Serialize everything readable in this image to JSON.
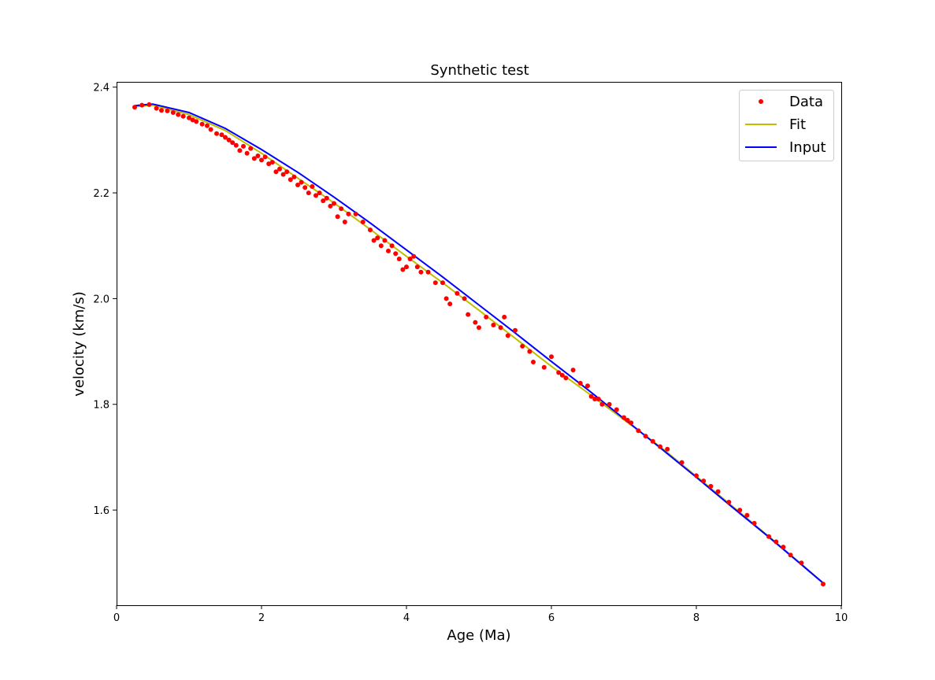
{
  "chart_data": {
    "type": "line",
    "title": "Synthetic test",
    "xlabel": "Age (Ma)",
    "ylabel": "velocity (km/s)",
    "xlim": [
      0,
      10
    ],
    "ylim": [
      1.42,
      2.41
    ],
    "xticks": [
      0,
      2,
      4,
      6,
      8,
      10
    ],
    "yticks": [
      1.6,
      1.8,
      2.0,
      2.2,
      2.4
    ],
    "xtick_labels": [
      "0",
      "2",
      "4",
      "6",
      "8",
      "10"
    ],
    "ytick_labels": [
      "1.6",
      "1.8",
      "2.0",
      "2.2",
      "2.4"
    ],
    "grid": false,
    "legend_position": "top-right",
    "colors": {
      "data": "#ff0000",
      "fit": "#bfbf00",
      "input": "#0000ff"
    },
    "series": [
      {
        "name": "Data",
        "style": "markers",
        "x": [
          0.25,
          0.35,
          0.45,
          0.55,
          0.62,
          0.7,
          0.78,
          0.85,
          0.92,
          1.0,
          1.05,
          1.1,
          1.18,
          1.25,
          1.3,
          1.38,
          1.45,
          1.5,
          1.55,
          1.6,
          1.65,
          1.7,
          1.75,
          1.8,
          1.85,
          1.9,
          1.95,
          2.0,
          2.05,
          2.1,
          2.15,
          2.2,
          2.25,
          2.3,
          2.35,
          2.4,
          2.45,
          2.5,
          2.55,
          2.6,
          2.65,
          2.7,
          2.75,
          2.8,
          2.85,
          2.9,
          2.95,
          3.0,
          3.05,
          3.1,
          3.15,
          3.2,
          3.3,
          3.4,
          3.5,
          3.55,
          3.6,
          3.65,
          3.7,
          3.75,
          3.8,
          3.85,
          3.9,
          3.95,
          4.0,
          4.05,
          4.1,
          4.15,
          4.2,
          4.3,
          4.4,
          4.5,
          4.55,
          4.6,
          4.7,
          4.8,
          4.85,
          4.95,
          5.0,
          5.1,
          5.2,
          5.3,
          5.35,
          5.4,
          5.5,
          5.6,
          5.7,
          5.75,
          5.9,
          6.0,
          6.1,
          6.15,
          6.2,
          6.3,
          6.4,
          6.5,
          6.55,
          6.6,
          6.65,
          6.7,
          6.8,
          6.9,
          7.0,
          7.05,
          7.1,
          7.2,
          7.3,
          7.4,
          7.5,
          7.6,
          7.8,
          8.0,
          8.1,
          8.2,
          8.3,
          8.45,
          8.6,
          8.7,
          8.8,
          9.0,
          9.1,
          9.2,
          9.3,
          9.45,
          9.75
        ],
        "y": [
          2.362,
          2.366,
          2.367,
          2.36,
          2.356,
          2.355,
          2.352,
          2.348,
          2.345,
          2.342,
          2.338,
          2.335,
          2.33,
          2.327,
          2.32,
          2.312,
          2.31,
          2.305,
          2.3,
          2.295,
          2.29,
          2.28,
          2.288,
          2.275,
          2.284,
          2.265,
          2.27,
          2.262,
          2.268,
          2.255,
          2.258,
          2.24,
          2.245,
          2.235,
          2.24,
          2.225,
          2.23,
          2.215,
          2.22,
          2.21,
          2.2,
          2.212,
          2.195,
          2.2,
          2.185,
          2.19,
          2.175,
          2.18,
          2.155,
          2.17,
          2.145,
          2.16,
          2.16,
          2.145,
          2.13,
          2.11,
          2.115,
          2.1,
          2.11,
          2.09,
          2.1,
          2.085,
          2.075,
          2.055,
          2.06,
          2.075,
          2.08,
          2.06,
          2.05,
          2.05,
          2.03,
          2.03,
          2.0,
          1.99,
          2.01,
          2.0,
          1.97,
          1.955,
          1.945,
          1.965,
          1.95,
          1.945,
          1.965,
          1.93,
          1.94,
          1.91,
          1.9,
          1.88,
          1.87,
          1.89,
          1.86,
          1.855,
          1.85,
          1.865,
          1.84,
          1.835,
          1.815,
          1.81,
          1.81,
          1.8,
          1.8,
          1.79,
          1.775,
          1.77,
          1.765,
          1.75,
          1.74,
          1.73,
          1.72,
          1.715,
          1.69,
          1.665,
          1.655,
          1.645,
          1.635,
          1.615,
          1.6,
          1.59,
          1.575,
          1.55,
          1.54,
          1.53,
          1.515,
          1.5,
          1.46
        ]
      },
      {
        "name": "Fit",
        "style": "line",
        "x": [
          0.25,
          0.5,
          1,
          1.5,
          2,
          2.5,
          3,
          3.5,
          4,
          4.5,
          5,
          5.5,
          6,
          6.5,
          7,
          7.5,
          8,
          8.5,
          9,
          9.5,
          9.75
        ],
        "y": [
          2.363,
          2.366,
          2.348,
          2.318,
          2.275,
          2.228,
          2.181,
          2.131,
          2.08,
          2.03,
          1.978,
          1.925,
          1.872,
          1.822,
          1.771,
          1.72,
          1.664,
          1.607,
          1.55,
          1.492,
          1.462
        ]
      },
      {
        "name": "Input",
        "style": "line",
        "x": [
          0.25,
          0.5,
          1,
          1.5,
          2,
          2.5,
          3,
          3.5,
          4,
          4.5,
          5,
          5.5,
          6,
          6.5,
          7,
          7.5,
          8,
          8.5,
          9,
          9.5,
          9.75
        ],
        "y": [
          2.365,
          2.368,
          2.352,
          2.322,
          2.282,
          2.239,
          2.192,
          2.143,
          2.092,
          2.041,
          1.988,
          1.935,
          1.881,
          1.828,
          1.773,
          1.718,
          1.662,
          1.605,
          1.549,
          1.491,
          1.462
        ]
      }
    ]
  }
}
